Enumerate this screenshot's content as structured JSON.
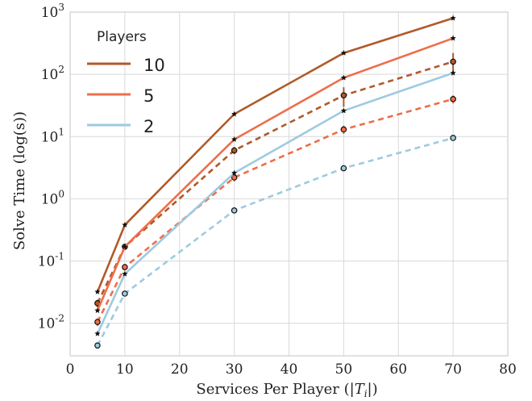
{
  "chart_data": {
    "type": "line",
    "title": "",
    "xlabel": "Services Per Player (|T_i|)",
    "xlabel_parts": {
      "prefix": "Services Per Player (|",
      "var": "T",
      "sub": "i",
      "suffix": "|)"
    },
    "ylabel": "Solve Time (log(s))",
    "xlim": [
      0,
      80
    ],
    "ylim": [
      0.003,
      1000
    ],
    "yscale": "log",
    "grid": true,
    "xticks": [
      "0",
      "10",
      "20",
      "30",
      "40",
      "50",
      "60",
      "70",
      "80"
    ],
    "yticks": [
      {
        "base": "10",
        "exp": "-2",
        "value": 0.01
      },
      {
        "base": "10",
        "exp": "-1",
        "value": 0.1
      },
      {
        "base": "10",
        "exp": "0",
        "value": 1
      },
      {
        "base": "10",
        "exp": "1",
        "value": 10
      },
      {
        "base": "10",
        "exp": "2",
        "value": 100
      },
      {
        "base": "10",
        "exp": "3",
        "value": 1000
      }
    ],
    "x": [
      5,
      10,
      30,
      50,
      70
    ],
    "legend": {
      "title": "Players",
      "location": "upper left",
      "entries": [
        "10",
        "5",
        "2"
      ]
    },
    "series": [
      {
        "name": "10",
        "style": "solid",
        "marker": "star",
        "color": "#b05a2a",
        "values": [
          0.032,
          0.38,
          23,
          220,
          800
        ]
      },
      {
        "name": "5",
        "style": "solid",
        "marker": "star",
        "color": "#ee6e4a",
        "values": [
          0.016,
          0.17,
          9,
          88,
          380
        ]
      },
      {
        "name": "2",
        "style": "solid",
        "marker": "star",
        "color": "#9ecae1",
        "values": [
          0.0068,
          0.062,
          2.6,
          26,
          105
        ]
      },
      {
        "style": "dashed",
        "marker": "circle",
        "color": "#b05a2a",
        "values": [
          0.021,
          0.17,
          6,
          46,
          160
        ],
        "errors": [
          0.003,
          0.02,
          0.8,
          16,
          60
        ]
      },
      {
        "style": "dashed",
        "marker": "circle",
        "color": "#ee6e4a",
        "values": [
          0.0105,
          0.08,
          2.2,
          13,
          40
        ],
        "errors": [
          0.0015,
          0.01,
          0.3,
          2,
          6
        ]
      },
      {
        "style": "dashed",
        "marker": "circle",
        "color": "#9ecae1",
        "values": [
          0.0044,
          0.03,
          0.65,
          3.1,
          9.5
        ],
        "errors": [
          0.0005,
          0.003,
          0.06,
          0.3,
          0.9
        ]
      }
    ]
  }
}
